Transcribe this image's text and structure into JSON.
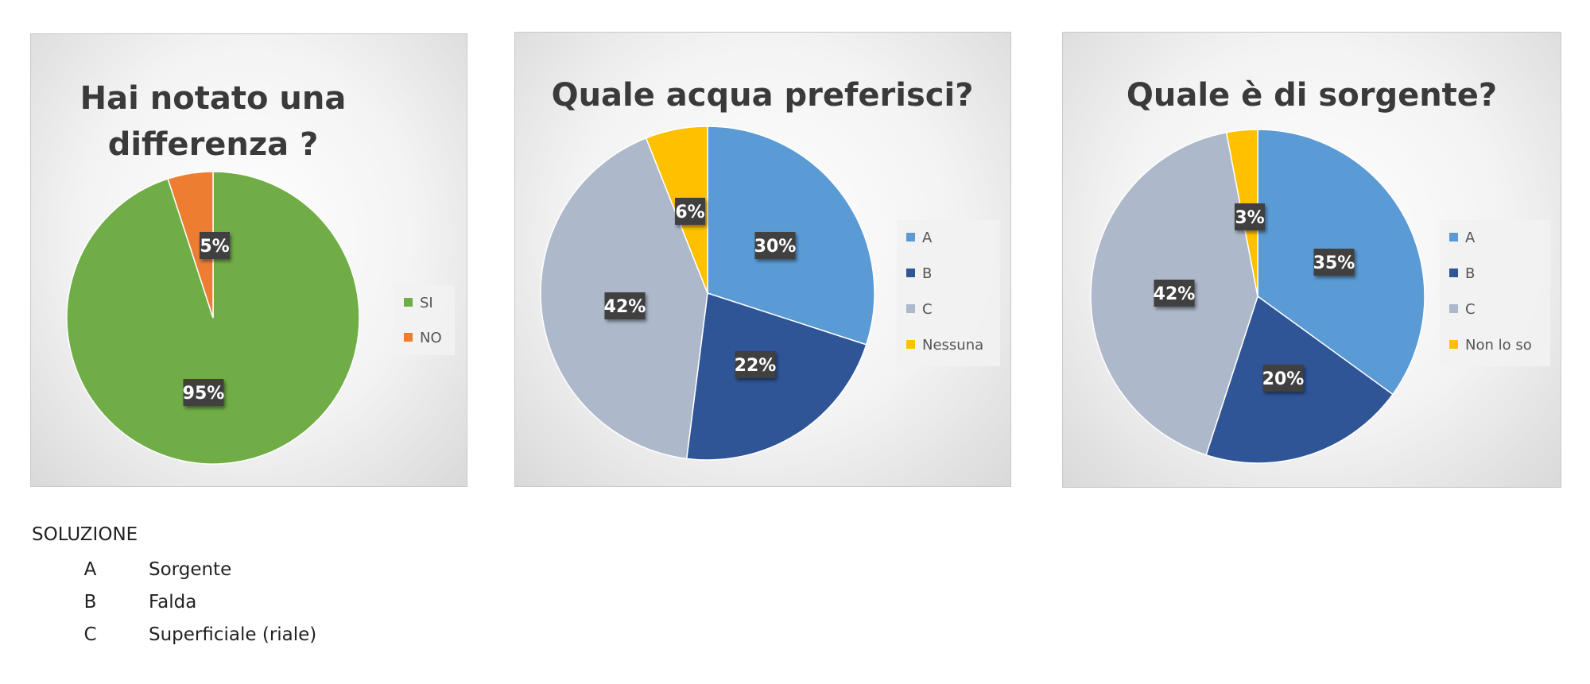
{
  "chart_data": [
    {
      "type": "pie",
      "title": "Hai notato una differenza ?",
      "title_lines": [
        "Hai notato una",
        "differenza ?"
      ],
      "categories": [
        "SI",
        "NO"
      ],
      "values": [
        95,
        5
      ],
      "labels": [
        "95%",
        "5%"
      ],
      "colors": [
        "#70AD47",
        "#ED7D31"
      ],
      "legend": "right"
    },
    {
      "type": "pie",
      "title": "Quale acqua preferisci?",
      "title_lines": [
        "Quale acqua preferisci?"
      ],
      "categories": [
        "A",
        "B",
        "C",
        "Nessuna"
      ],
      "values": [
        30,
        22,
        42,
        6
      ],
      "labels": [
        "30%",
        "22%",
        "42%",
        "6%"
      ],
      "colors": [
        "#5B9BD5",
        "#2F5597",
        "#ADB9CA",
        "#FFC000"
      ],
      "legend": "right"
    },
    {
      "type": "pie",
      "title": "Quale è di sorgente?",
      "title_lines": [
        "Quale è di sorgente?"
      ],
      "categories": [
        "A",
        "B",
        "C",
        "Non lo so"
      ],
      "values": [
        35,
        20,
        42,
        3
      ],
      "labels": [
        "35%",
        "20%",
        "42%",
        "3%"
      ],
      "colors": [
        "#5B9BD5",
        "#2F5597",
        "#ADB9CA",
        "#FFC000"
      ],
      "legend": "right"
    }
  ],
  "solution": {
    "title": "SOLUZIONE",
    "rows": [
      {
        "key": "A",
        "value": "Sorgente"
      },
      {
        "key": "B",
        "value": "Falda"
      },
      {
        "key": "C",
        "value": "Superficiale (riale)"
      }
    ]
  }
}
